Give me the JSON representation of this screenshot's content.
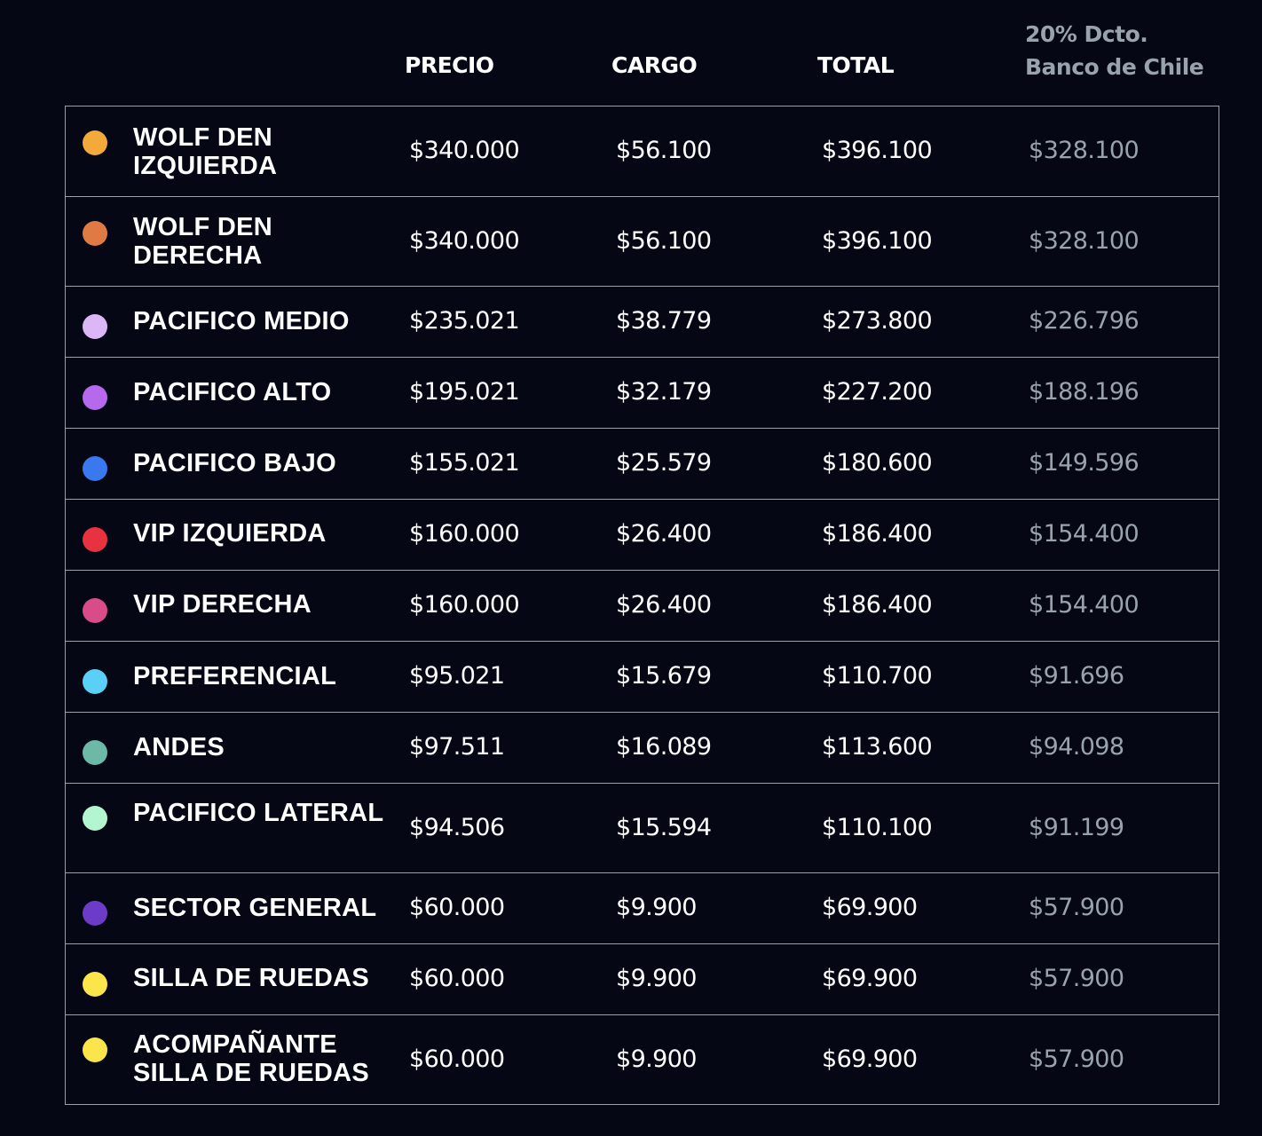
{
  "header": {
    "precio": "PRECIO",
    "cargo": "CARGO",
    "total": "TOTAL",
    "dcto_line1": "20% Dcto.",
    "dcto_line2": "Banco de Chile"
  },
  "colors": {
    "background": "#050814",
    "text": "#ffffff",
    "discount_text": "#98a3ad",
    "border": "#9aa0a8"
  },
  "rows": [
    {
      "name": "WOLF DEN IZQUIERDA",
      "color": "#f4a93b",
      "precio": "$340.000",
      "cargo": "$56.100",
      "total": "$396.100",
      "dcto": "$328.100"
    },
    {
      "name": "WOLF DEN DERECHA",
      "color": "#e07a45",
      "precio": "$340.000",
      "cargo": "$56.100",
      "total": "$396.100",
      "dcto": "$328.100"
    },
    {
      "name": "PACIFICO MEDIO",
      "color": "#dbb8f5",
      "precio": "$235.021",
      "cargo": "$38.779",
      "total": "$273.800",
      "dcto": "$226.796"
    },
    {
      "name": "PACIFICO ALTO",
      "color": "#b769ee",
      "precio": "$195.021",
      "cargo": "$32.179",
      "total": "$227.200",
      "dcto": "$188.196"
    },
    {
      "name": "PACIFICO BAJO",
      "color": "#3a78ee",
      "precio": "$155.021",
      "cargo": "$25.579",
      "total": "$180.600",
      "dcto": "$149.596"
    },
    {
      "name": "VIP IZQUIERDA",
      "color": "#e7333f",
      "precio": "$160.000",
      "cargo": "$26.400",
      "total": "$186.400",
      "dcto": "$154.400"
    },
    {
      "name": "VIP DERECHA",
      "color": "#d94c8a",
      "precio": "$160.000",
      "cargo": "$26.400",
      "total": "$186.400",
      "dcto": "$154.400"
    },
    {
      "name": "PREFERENCIAL",
      "color": "#5bd0f7",
      "precio": "$95.021",
      "cargo": "$15.679",
      "total": "$110.700",
      "dcto": "$91.696"
    },
    {
      "name": "ANDES",
      "color": "#6cb9a7",
      "precio": "$97.511",
      "cargo": "$16.089",
      "total": "$113.600",
      "dcto": "$94.098"
    },
    {
      "name": "PACIFICO LATERAL",
      "color": "#b3f4d1",
      "precio": "$94.506",
      "cargo": "$15.594",
      "total": "$110.100",
      "dcto": "$91.199"
    },
    {
      "name": "SECTOR GENERAL",
      "color": "#6c3cc8",
      "precio": "$60.000",
      "cargo": "$9.900",
      "total": "$69.900",
      "dcto": "$57.900"
    },
    {
      "name": "SILLA DE RUEDAS",
      "color": "#fbe54a",
      "precio": "$60.000",
      "cargo": "$9.900",
      "total": "$69.900",
      "dcto": "$57.900"
    },
    {
      "name": "ACOMPAÑANTE SILLA DE RUEDAS",
      "color": "#fbe54a",
      "precio": "$60.000",
      "cargo": "$9.900",
      "total": "$69.900",
      "dcto": "$57.900"
    }
  ]
}
